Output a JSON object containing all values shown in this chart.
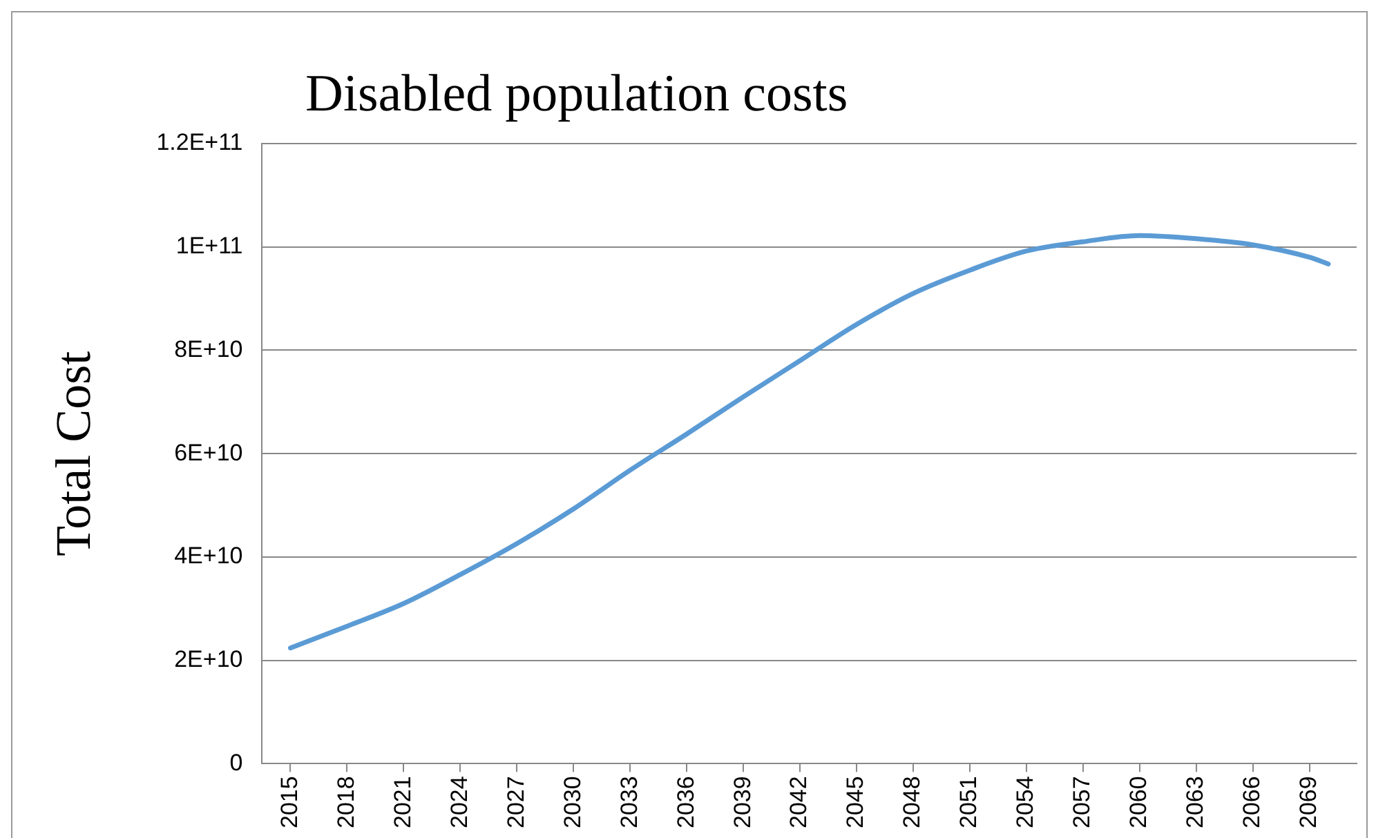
{
  "chart_data": {
    "type": "line",
    "title": "Disabled population costs",
    "ylabel": "Total Cost",
    "x": [
      2015,
      2018,
      2021,
      2024,
      2027,
      2030,
      2033,
      2036,
      2039,
      2042,
      2045,
      2048,
      2051,
      2054,
      2057,
      2060,
      2063,
      2066,
      2069,
      2070
    ],
    "series": [
      {
        "color": "#5b9bd5",
        "values": [
          22400000000,
          26600000000,
          31000000000,
          36600000000,
          42600000000,
          49300000000,
          56800000000,
          63800000000,
          71000000000,
          78000000000,
          85000000000,
          91000000000,
          95500000000,
          99200000000,
          101000000000,
          102200000000,
          101600000000,
          100400000000,
          98000000000,
          96700000000
        ]
      }
    ],
    "xlim": [
      2013.5,
      2071.5
    ],
    "xticks": [
      2015,
      2018,
      2021,
      2024,
      2027,
      2030,
      2033,
      2036,
      2039,
      2042,
      2045,
      2048,
      2051,
      2054,
      2057,
      2060,
      2063,
      2066,
      2069
    ],
    "ylim": [
      0,
      120000000000
    ],
    "yticks": [
      0,
      {
        "value": 20000000000,
        "label": "2E+10"
      },
      {
        "value": 40000000000,
        "label": "4E+10"
      },
      {
        "value": 60000000000,
        "label": "6E+10"
      },
      {
        "value": 80000000000,
        "label": "8E+10"
      },
      {
        "value": 100000000000,
        "label": "1E+11"
      },
      {
        "value": 120000000000,
        "label": "1.2E+11"
      }
    ],
    "grid": "y",
    "legend": false,
    "marker": "none",
    "line_style": "solid"
  }
}
